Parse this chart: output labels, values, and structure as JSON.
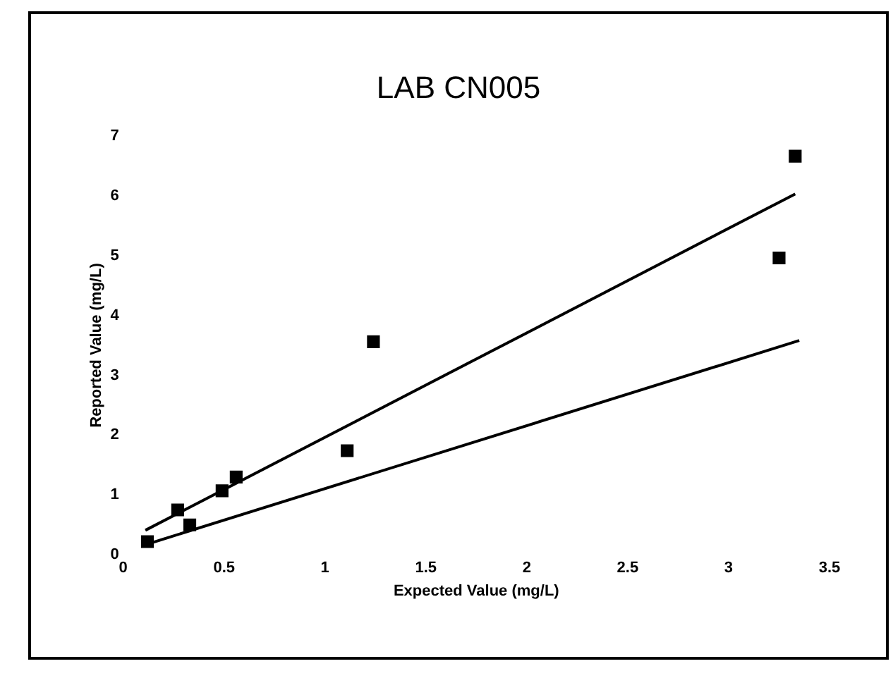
{
  "chart_data": {
    "type": "scatter",
    "title": "LAB CN005",
    "xlabel": "Expected Value (mg/L)",
    "ylabel": "Reported Value (mg/L)",
    "xlim": [
      0,
      3.5
    ],
    "xticks": [
      0,
      0.5,
      1,
      1.5,
      2,
      2.5,
      3,
      3.5
    ],
    "ylim": [
      0,
      7
    ],
    "yticks": [
      0,
      1,
      2,
      3,
      4,
      5,
      6,
      7
    ],
    "grid": false,
    "legend": false,
    "series": [
      {
        "type": "scatter",
        "color": "#000000",
        "marker": "square",
        "x": [
          0.12,
          0.27,
          0.33,
          0.49,
          0.56,
          1.11,
          1.24,
          3.25,
          3.33
        ],
        "values": [
          0.22,
          0.75,
          0.5,
          1.07,
          1.3,
          1.74,
          3.56,
          4.96,
          6.66
        ]
      },
      {
        "type": "line",
        "color": "#000000",
        "marker": "none",
        "line_style": "solid",
        "x": [
          0.11,
          3.33
        ],
        "values": [
          0.41,
          6.03
        ]
      },
      {
        "type": "line",
        "color": "#000000",
        "marker": "none",
        "line_style": "solid",
        "x": [
          0.13,
          3.35
        ],
        "values": [
          0.19,
          3.58
        ]
      }
    ]
  }
}
